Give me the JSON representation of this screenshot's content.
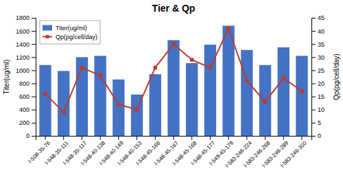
{
  "chart_data": {
    "type": "bar",
    "title": "Tier & Qp",
    "categories": [
      "I-508-35-76",
      "I-548-35-111",
      "I-548-35-117",
      "I-548-40-138",
      "I-548-40-149",
      "I-548-40-153",
      "I-548-45-166",
      "I-548-45-167",
      "I-548-45-168",
      "I-548-45-177",
      "I-549-45-179",
      "I-583-246-224",
      "I-583-246-268",
      "I-583-246-289",
      "I-583-246-300"
    ],
    "series": [
      {
        "name": "Titer(ug/ml)",
        "color": "#4472C4",
        "values": [
          1080,
          990,
          1200,
          1220,
          860,
          630,
          940,
          1460,
          1110,
          1390,
          1680,
          1310,
          1080,
          1350,
          1220
        ]
      },
      {
        "name": "Qp(pg/cell/day)",
        "color": "#C0392B",
        "type": "line",
        "axis": "y2",
        "marker": "square",
        "values": [
          16,
          9,
          26,
          23,
          12,
          10,
          26,
          35,
          29,
          26,
          41,
          21,
          13,
          22,
          17
        ]
      }
    ],
    "ylabel": "Titer(ug/ml)",
    "y2label": "Qp(pg/cell/day)",
    "ylim": [
      0,
      1800
    ],
    "yticks": [
      0,
      200,
      400,
      600,
      800,
      1000,
      1200,
      1400,
      1600,
      1800
    ],
    "y2lim": [
      0,
      45
    ],
    "y2ticks": [
      0,
      5,
      10,
      15,
      20,
      25,
      30,
      35,
      40,
      45
    ],
    "grid": false,
    "legend": "upper left"
  }
}
